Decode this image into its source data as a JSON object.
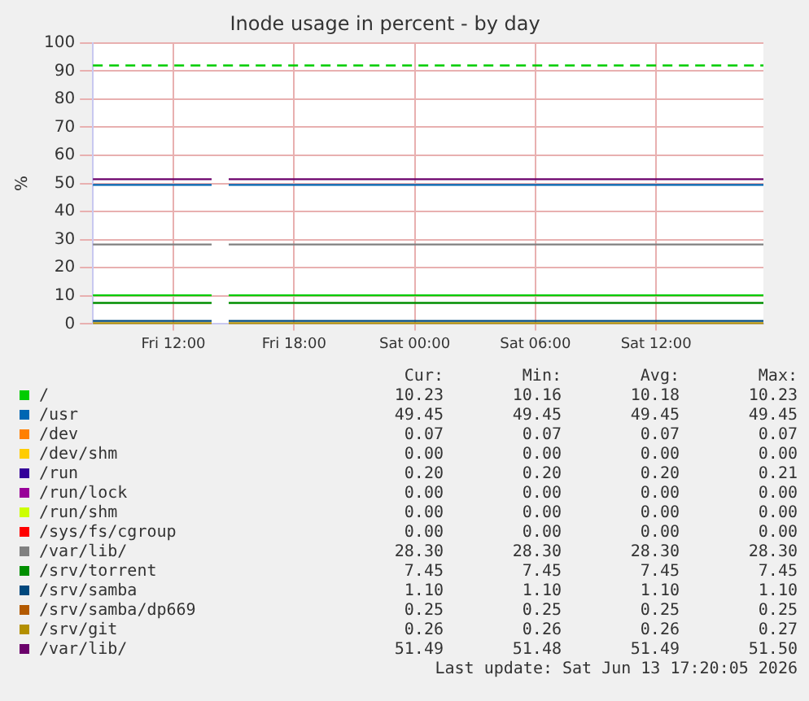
{
  "chart_data": [
    {
      "type": "line",
      "title": "Inode usage in percent - by day",
      "ylabel": "%",
      "xlim": [
        "2026-06-12T08:00",
        "2026-06-13T17:20"
      ],
      "xticks": [
        {
          "value": "2026-06-12T12:00",
          "label": "Fri 12:00"
        },
        {
          "value": "2026-06-12T18:00",
          "label": "Fri 18:00"
        },
        {
          "value": "2026-06-13T00:00",
          "label": "Sat 00:00"
        },
        {
          "value": "2026-06-13T06:00",
          "label": "Sat 06:00"
        },
        {
          "value": "2026-06-13T12:00",
          "label": "Sat 12:00"
        }
      ],
      "ylim": [
        0,
        100
      ],
      "yticks": [
        0,
        10,
        20,
        30,
        40,
        50,
        60,
        70,
        80,
        90,
        100
      ],
      "grid": true,
      "legend": "bottom",
      "marker": "none",
      "line_style": "solid",
      "x": [
        "2026-06-12T08:00",
        "2026-06-12T13:54",
        "2026-06-12T14:18",
        "2026-06-12T14:45",
        "2026-06-13T17:20"
      ],
      "series": [
        {
          "name": "/",
          "color": "#00cc00",
          "values": [
            10.2,
            10.2,
            null,
            10.2,
            10.2
          ]
        },
        {
          "name": "/usr",
          "color": "#0066b3",
          "values": [
            49.5,
            49.5,
            null,
            49.5,
            49.5
          ]
        },
        {
          "name": "/dev",
          "color": "#ff8000",
          "values": [
            null,
            null,
            null,
            null,
            null
          ]
        },
        {
          "name": "/dev/shm",
          "color": "#ffcc00",
          "values": [
            null,
            null,
            null,
            null,
            null
          ]
        },
        {
          "name": "/run",
          "color": "#330099",
          "values": [
            null,
            null,
            null,
            null,
            null
          ]
        },
        {
          "name": "/run/lock",
          "color": "#990099",
          "values": [
            null,
            null,
            null,
            null,
            null
          ]
        },
        {
          "name": "/run/shm",
          "color": "#ccff00",
          "values": [
            null,
            null,
            null,
            null,
            null
          ]
        },
        {
          "name": "/sys/fs/cgroup",
          "color": "#ff0000",
          "values": [
            null,
            null,
            null,
            null,
            null
          ]
        },
        {
          "name": "/var/lib/",
          "color": "#808080",
          "values": [
            28.3,
            28.3,
            null,
            28.3,
            28.3
          ]
        },
        {
          "name": "/srv/torrent",
          "color": "#008f00",
          "values": [
            7.5,
            7.5,
            null,
            7.5,
            7.5
          ]
        },
        {
          "name": "/srv/samba",
          "color": "#00487d",
          "values": [
            1.1,
            1.1,
            null,
            1.1,
            1.1
          ]
        },
        {
          "name": "/srv/samba/dp669",
          "color": "#b35a00",
          "values": [
            null,
            null,
            null,
            null,
            null
          ]
        },
        {
          "name": "/srv/git",
          "color": "#b38f00",
          "values": [
            0.3,
            0.3,
            null,
            0.3,
            0.3
          ]
        },
        {
          "name": "/var/lib/",
          "color": "#6b006b",
          "values": [
            51.5,
            51.5,
            null,
            51.5,
            51.5
          ]
        }
      ],
      "ref_lines": [
        {
          "axis": "y",
          "value": 92,
          "color": "#00cc00",
          "line_style": "dashed"
        }
      ]
    },
    {
      "type": "other",
      "annotations": [
        "Cur:",
        "Min:",
        "Avg:",
        "Max:",
        "10.23",
        "10.16",
        "10.18",
        "10.23",
        "49.45",
        "49.45",
        "49.45",
        "49.45",
        "0.07",
        "0.07",
        "0.07",
        "0.07",
        "0.00",
        "0.00",
        "0.00",
        "0.00",
        "0.20",
        "0.20",
        "0.20",
        "0.21",
        "0.00",
        "0.00",
        "0.00",
        "0.00",
        "0.00",
        "0.00",
        "0.00",
        "0.00",
        "0.00",
        "0.00",
        "0.00",
        "0.00",
        "28.30",
        "28.30",
        "28.30",
        "28.30",
        "7.45",
        "7.45",
        "7.45",
        "7.45",
        "1.10",
        "1.10",
        "1.10",
        "1.10",
        "0.25",
        "0.25",
        "0.25",
        "0.25",
        "0.26",
        "0.26",
        "0.26",
        "0.27",
        "51.49",
        "51.48",
        "51.49",
        "51.50",
        "Last update: Sat Jun 13 17:20:05 2026"
      ]
    }
  ]
}
